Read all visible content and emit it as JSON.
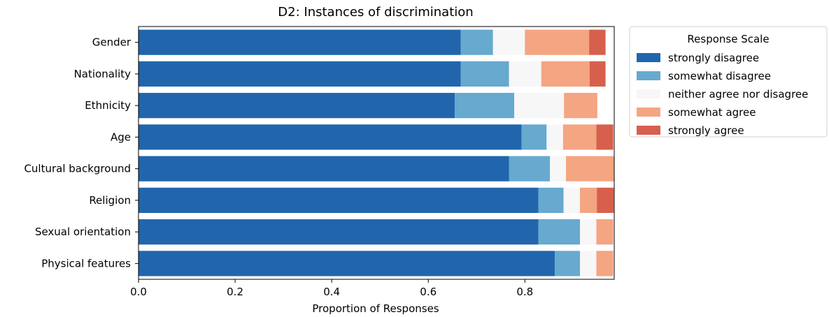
{
  "chart_data": {
    "type": "bar",
    "orientation": "horizontal",
    "stacked": true,
    "title": "D2: Instances of discrimination",
    "xlabel": "Proportion of Responses",
    "ylabel": "",
    "xlim": [
      0,
      0.985
    ],
    "xticks": [
      0.0,
      0.2,
      0.4,
      0.6,
      0.8
    ],
    "xtick_labels": [
      "0.0",
      "0.2",
      "0.4",
      "0.6",
      "0.8"
    ],
    "grid": false,
    "legend": {
      "title": "Response Scale",
      "placement": "outside-right-top"
    },
    "categories": [
      "Gender",
      "Nationality",
      "Ethnicity",
      "Age",
      "Cultural background",
      "Religion",
      "Sexual orientation",
      "Physical features"
    ],
    "series": [
      {
        "name": "strongly disagree",
        "color": "#2166ac",
        "values": [
          0.667,
          0.667,
          0.655,
          0.793,
          0.767,
          0.828,
          0.828,
          0.862
        ]
      },
      {
        "name": "somewhat disagree",
        "color": "#67a9cf",
        "values": [
          0.067,
          0.1,
          0.123,
          0.052,
          0.085,
          0.052,
          0.086,
          0.052
        ]
      },
      {
        "name": "neither agree nor disagree",
        "color": "#f7f7f7",
        "values": [
          0.066,
          0.067,
          0.103,
          0.034,
          0.033,
          0.034,
          0.034,
          0.034
        ]
      },
      {
        "name": "somewhat agree",
        "color": "#f4a582",
        "values": [
          0.133,
          0.1,
          0.069,
          0.069,
          0.1,
          0.035,
          0.035,
          0.035
        ]
      },
      {
        "name": "strongly agree",
        "color": "#d6604d",
        "values": [
          0.034,
          0.033,
          0,
          0.035,
          0,
          0.035,
          0,
          0
        ]
      }
    ]
  }
}
